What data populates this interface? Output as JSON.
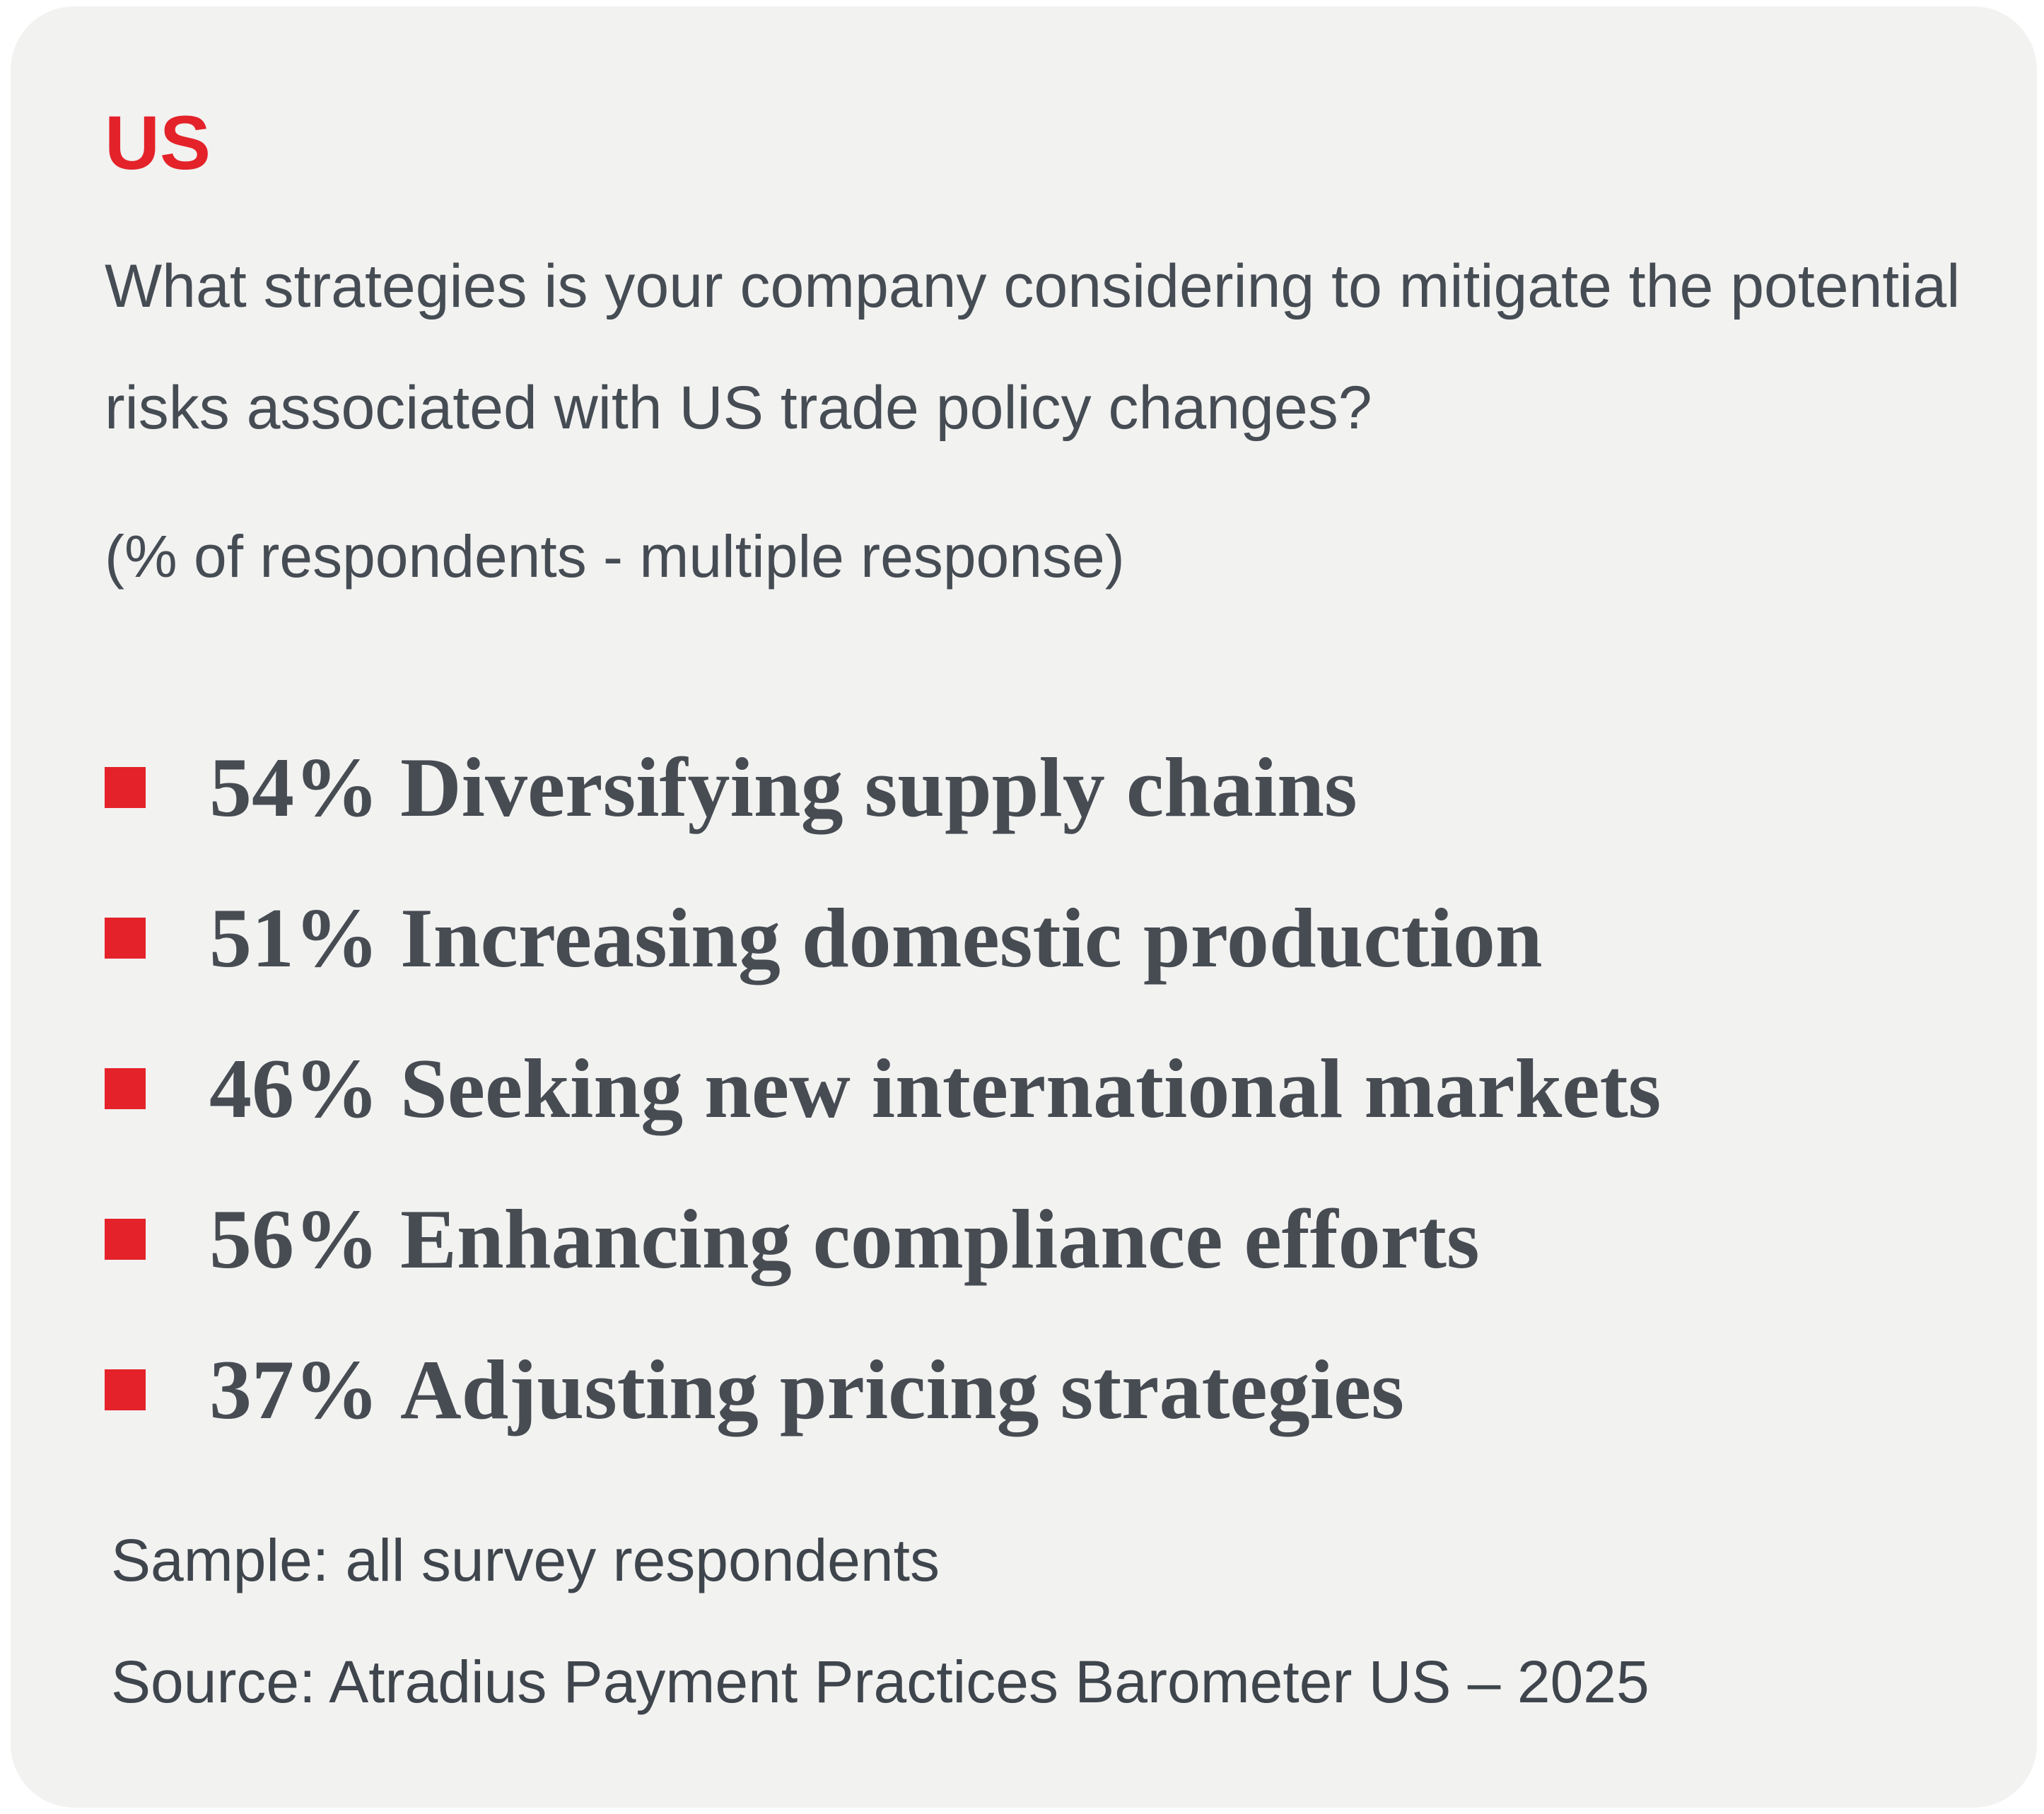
{
  "header": {
    "title": "US",
    "question": "What strategies is your company considering to mitigate the potential risks associated with US trade policy changes?",
    "subtitle": "(% of respondents - multiple response)"
  },
  "items": [
    {
      "percent": "54%",
      "label": "Diversifying supply chains"
    },
    {
      "percent": "51%",
      "label": "Increasing domestic production"
    },
    {
      "percent": "46%",
      "label": "Seeking new international markets"
    },
    {
      "percent": "56%",
      "label": "Enhancing compliance efforts"
    },
    {
      "percent": "37%",
      "label": "Adjusting pricing strategies"
    }
  ],
  "footer": {
    "sample": "Sample: all survey respondents",
    "source": "Source: Atradius Payment Practices Barometer US – 2025"
  }
}
